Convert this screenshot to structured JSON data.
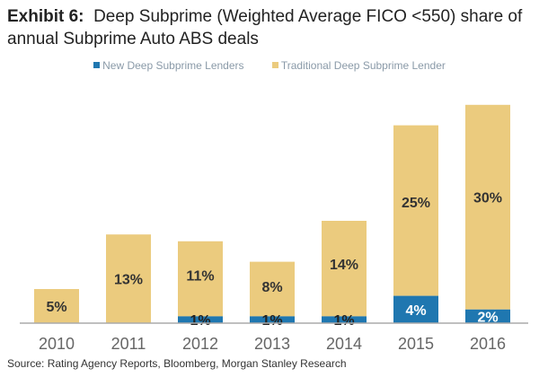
{
  "chart_data": {
    "type": "bar",
    "stacked": true,
    "title_prefix": "Exhibit 6:",
    "title": "Deep Subprime (Weighted Average FICO <550) share of annual Subprime Auto ABS deals",
    "categories": [
      "2010",
      "2011",
      "2012",
      "2013",
      "2014",
      "2015",
      "2016"
    ],
    "series": [
      {
        "name": "New Deep Subprime Lenders",
        "color": "#1f77b0",
        "values": [
          0,
          0,
          1,
          1,
          1,
          4,
          2
        ],
        "labels": [
          "",
          "",
          "1%",
          "1%",
          "1%",
          "4%",
          "2%"
        ]
      },
      {
        "name": "Traditional Deep Subprime Lender",
        "color": "#ebcb7e",
        "values": [
          5,
          13,
          11,
          8,
          14,
          25,
          30
        ],
        "labels": [
          "5%",
          "13%",
          "11%",
          "8%",
          "14%",
          "25%",
          "30%"
        ]
      }
    ],
    "legend_position": "top",
    "grid": false,
    "yaxis_visible": false,
    "ylim": [
      0,
      33
    ],
    "source": "Source: Rating Agency Reports, Bloomberg, Morgan Stanley Research"
  }
}
